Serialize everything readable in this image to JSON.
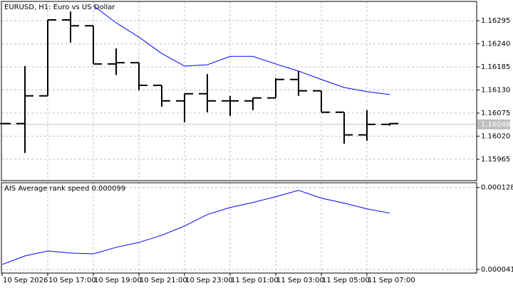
{
  "chart_data": [
    {
      "type": "ohlc",
      "title": "EURUSD, H1: Euro vs US Dollar",
      "categories": [
        "10 Sep 2026",
        null,
        "10 Sep 17:00",
        null,
        "10 Sep 19:00",
        null,
        "10 Sep 21:00",
        null,
        "10 Sep 23:00",
        null,
        "11 Sep 01:00",
        null,
        "11 Sep 03:00",
        null,
        "11 Sep 05:00",
        null,
        "11 Sep 07:00",
        null
      ],
      "open": [
        1.1605,
        1.1605,
        1.16116,
        1.16297,
        1.16283,
        1.16192,
        1.16195,
        1.16141,
        1.16104,
        1.16121,
        1.16104,
        1.16104,
        1.16111,
        1.16155,
        1.16128,
        1.16077,
        1.16023,
        1.16048
      ],
      "high": [
        1.1605,
        1.16187,
        1.16297,
        1.16317,
        1.16283,
        1.16229,
        1.16195,
        1.16141,
        1.16121,
        1.16168,
        1.16116,
        1.16111,
        1.16158,
        1.16175,
        1.16128,
        1.16077,
        1.16082,
        1.16051
      ],
      "low": [
        1.1605,
        1.1598,
        1.16116,
        1.16243,
        1.16192,
        1.16166,
        1.16129,
        1.1609,
        1.16053,
        1.16077,
        1.16068,
        1.16082,
        1.16111,
        1.16116,
        1.16077,
        1.16002,
        1.16009,
        1.16045
      ],
      "close": [
        1.1605,
        1.16116,
        1.16297,
        1.16283,
        1.16192,
        1.16195,
        1.16141,
        1.16104,
        1.16121,
        1.16104,
        1.16104,
        1.16111,
        1.16155,
        1.16128,
        1.16077,
        1.16023,
        1.16048,
        1.1605
      ],
      "color": "#000000",
      "overlay": {
        "color": "#0000ff",
        "values": [
          null,
          null,
          null,
          null,
          1.16331,
          1.1629,
          1.16256,
          1.16217,
          1.16187,
          1.1619,
          1.1621,
          1.1621,
          1.16192,
          1.16175,
          1.16155,
          1.16136,
          1.16126,
          1.16119
        ]
      },
      "current_price": 1.16048,
      "ylim": [
        1.15914,
        1.16341
      ],
      "yticks": [
        1.16295,
        {
          "value": 1.1624,
          "label": "1.16240"
        },
        1.16185,
        {
          "value": 1.1613,
          "label": "1.16130"
        },
        1.16075,
        {
          "value": 1.1602,
          "label": "1.16020"
        },
        1.15965
      ],
      "grid": true
    },
    {
      "type": "line",
      "title": "AIS Average rank speed 0.000099",
      "color": "#0000ff",
      "values": [
        4.63e-05,
        5.54e-05,
        6.07e-05,
        5.84e-05,
        5.76e-05,
        6.45e-05,
        6.97e-05,
        7.73e-05,
        8.71e-05,
        9.93e-05,
        0.0001068,
        0.0001121,
        0.0001182,
        0.000125,
        0.0001167,
        0.0001114,
        0.0001053,
        0.0001008
      ],
      "ylim": [
        3.72e-05,
        0.000133
      ],
      "yticks": [
        0.000128,
        4.1e-05
      ]
    }
  ]
}
